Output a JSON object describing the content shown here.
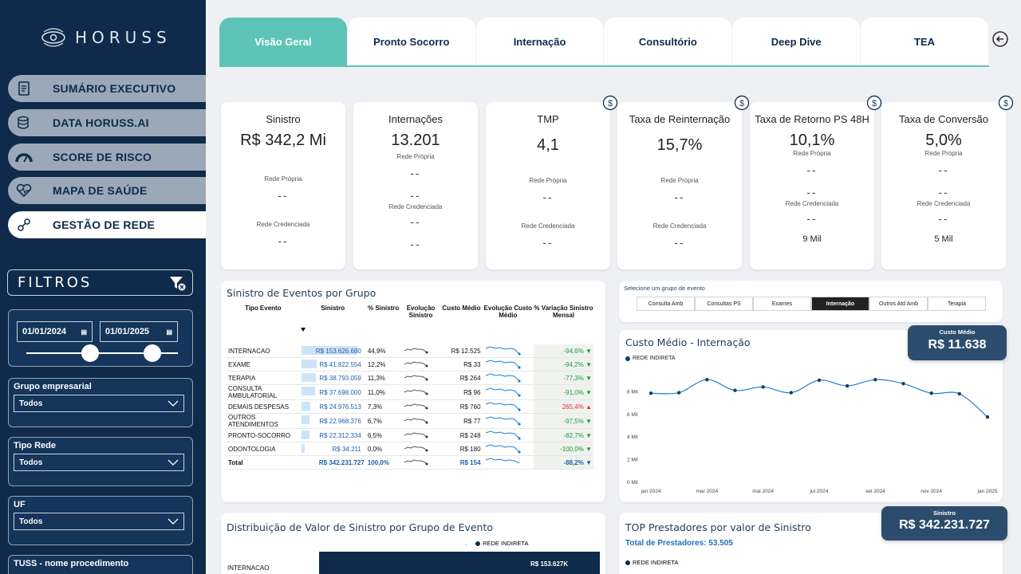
{
  "logo": {
    "text": "HORUSS"
  },
  "nav": [
    {
      "label": "SUMÁRIO EXECUTIVO",
      "icon": "report-icon"
    },
    {
      "label": "DATA HORUSS.AI",
      "icon": "database-icon"
    },
    {
      "label": "SCORE DE RISCO",
      "icon": "gauge-icon"
    },
    {
      "label": "MAPA DE SAÚDE",
      "icon": "heart-icon"
    },
    {
      "label": "GESTÃO DE REDE",
      "icon": "network-icon"
    }
  ],
  "filters": {
    "title": "FILTROS",
    "date_start": "01/01/2024",
    "date_end": "01/01/2025",
    "grupo_label": "Grupo empresarial",
    "grupo_value": "Todos",
    "tipo_label": "Tipo Rede",
    "tipo_value": "Todos",
    "uf_label": "UF",
    "uf_value": "Todos",
    "tuss_label": "TUSS - nome procedimento"
  },
  "tabs": [
    "Visão Geral",
    "Pronto Socorro",
    "Internação",
    "Consultório",
    "Deep Dive",
    "TEA"
  ],
  "kpis": {
    "sinistro": {
      "title": "Sinistro",
      "value": "R$ 342,2 Mi",
      "l1": "Rede Própria",
      "v1": "--",
      "l2": "Rede Credenciada",
      "v2": "--"
    },
    "internacoes": {
      "title": "Internações",
      "value": "13.201",
      "l0": "Rede Própria",
      "v0": "--",
      "v1": "--",
      "l2": "Rede Credenciada",
      "v2": "--",
      "v3": "--"
    },
    "tmp": {
      "title": "TMP",
      "value": "4,1",
      "l1": "Rede Própria",
      "v1": "--",
      "l2": "Rede Credenciada",
      "v2": "--"
    },
    "reint": {
      "title": "Taxa de Reinternação",
      "value": "15,7%",
      "l1": "Rede Própria",
      "v1": "--",
      "l2": "Rede Credenciada",
      "v2": "--"
    },
    "retorno": {
      "title": "Taxa de Retorno PS 48H",
      "value": "10,1%",
      "l0": "Rede Própria",
      "v0": "--",
      "v1": "--",
      "l2": "Rede Credenciada",
      "v2": "--",
      "v3": "9 Mil"
    },
    "conversao": {
      "title": "Taxa de Conversão",
      "value": "5,0%",
      "l0": "Rede Própria",
      "v0": "--",
      "v1": "--",
      "l2": "Rede Credenciada",
      "v2": "--",
      "v3": "5 Mil"
    }
  },
  "events_table": {
    "title": "Sinistro de Eventos por Grupo",
    "headers": [
      "Tipo Evento",
      "Sinistro",
      "% Sinistro",
      "Evolução Sinistro",
      "Custo Médio",
      "Evolução Custo Médio",
      "% Variação Sinistro Mensal"
    ],
    "rows": [
      {
        "tipo": "INTERNACAO",
        "sinistro": "R$ 153.626.680",
        "pct": "44,9%",
        "custo": "R$ 12.525",
        "var": "-94,6%",
        "dir": "down",
        "share": 0.449
      },
      {
        "tipo": "EXAME",
        "sinistro": "R$ 41.822.554",
        "pct": "12,2%",
        "custo": "R$ 33",
        "var": "-94,2%",
        "dir": "down",
        "share": 0.122
      },
      {
        "tipo": "TERAPIA",
        "sinistro": "R$ 38.793.059",
        "pct": "11,3%",
        "custo": "R$ 264",
        "var": "-77,3%",
        "dir": "down",
        "share": 0.113
      },
      {
        "tipo": "CONSULTA AMBULATORIAL",
        "sinistro": "R$ 37.698.000",
        "pct": "11,0%",
        "custo": "R$ 96",
        "var": "-91,0%",
        "dir": "down",
        "share": 0.11
      },
      {
        "tipo": "DEMAIS DESPESAS",
        "sinistro": "R$ 24.976.513",
        "pct": "7,3%",
        "custo": "R$ 760",
        "var": "265,4%",
        "dir": "up",
        "share": 0.073
      },
      {
        "tipo": "OUTROS ATENDIMENTOS",
        "sinistro": "R$ 22.968.376",
        "pct": "6,7%",
        "custo": "R$ 77",
        "var": "-97,5%",
        "dir": "down",
        "share": 0.067
      },
      {
        "tipo": "PRONTO-SOCORRO",
        "sinistro": "R$ 22.312.334",
        "pct": "6,5%",
        "custo": "R$ 248",
        "var": "-82,7%",
        "dir": "down",
        "share": 0.065
      },
      {
        "tipo": "ODONTOLOGIA",
        "sinistro": "R$ 34.211",
        "pct": "0,0%",
        "custo": "R$ 180",
        "var": "-100,0%",
        "dir": "down",
        "share": 0.0
      }
    ],
    "total": {
      "tipo": "Total",
      "sinistro": "R$ 342.231.727",
      "pct": "100,0%",
      "custo": "R$ 154",
      "var": "-88,2%"
    }
  },
  "event_group_selector": {
    "title": "Selecione um grupo de evento",
    "options": [
      "Consulta Amb",
      "Consultas PS",
      "Exames",
      "Internação",
      "Outros Atd Amb",
      "Terapia"
    ],
    "selected": "Internação"
  },
  "custo_badge": {
    "label": "Custo Médio",
    "value": "R$ 11.638"
  },
  "chart_data": {
    "type": "line",
    "title": "Custo Médio - Internação",
    "series": [
      {
        "name": "REDE INDIRETA",
        "values": [
          7800,
          7850,
          9000,
          8050,
          8350,
          7850,
          8950,
          8450,
          9000,
          8650,
          7800,
          7750,
          5700
        ]
      }
    ],
    "x": [
      "jan 2024",
      "fev 2024",
      "mar 2024",
      "abr 2024",
      "mai 2024",
      "jun 2024",
      "jul 2024",
      "ago 2024",
      "set 2024",
      "out 2024",
      "nov 2024",
      "dez 2024",
      "jan 2025"
    ],
    "x_tick_labels": [
      "jan 2024",
      "mar 2024",
      "mai 2024",
      "jul 2024",
      "set 2024",
      "nov 2024",
      "jan 2025"
    ],
    "y_tick_labels": [
      "0 Mil",
      "2 Mil",
      "4 Mil",
      "6 Mil",
      "8 Mil"
    ],
    "ylim": [
      0,
      10000
    ],
    "color": "#1f7fd6"
  },
  "distribution": {
    "title": "Distribuição de Valor de Sinistro por Grupo de Evento",
    "legend": "REDE INDIRETA",
    "legend_prefix": ".",
    "row_label": "INTERNACAO",
    "row_value": "R$ 153.627K"
  },
  "top_prestadores": {
    "title": "TOP Prestadores por valor de Sinistro",
    "subtitle": "Total de Prestadores: 53.505",
    "legend": "REDE INDIRETA",
    "badge_label": "Sinistro",
    "badge_value": "R$ 342.231.727"
  }
}
